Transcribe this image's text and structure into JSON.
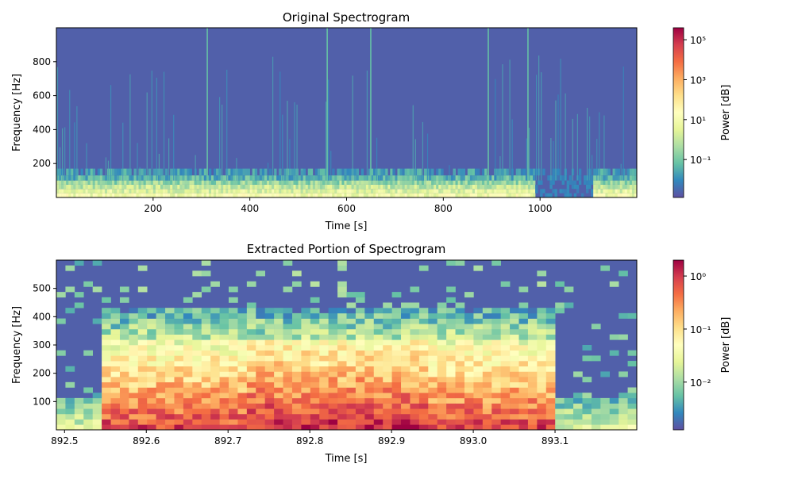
{
  "chart_data": [
    {
      "type": "heatmap",
      "title": "Original Spectrogram",
      "xlabel": "Time [s]",
      "ylabel": "Frequency [Hz]",
      "xlim": [
        0,
        1200
      ],
      "ylim": [
        0,
        1000
      ],
      "x_ticks": [
        200,
        400,
        600,
        800,
        1000
      ],
      "y_ticks": [
        200,
        400,
        600,
        800
      ],
      "colorbar": {
        "label": "Power [dB]",
        "scale": "log",
        "ticks": [
          {
            "exp": "-1",
            "label": "10⁻¹"
          },
          {
            "exp": "1",
            "label": "10¹"
          },
          {
            "exp": "3",
            "label": "10³"
          },
          {
            "exp": "5",
            "label": "10⁵"
          }
        ],
        "log_range": [
          -2.9,
          5.6
        ]
      },
      "features": {
        "low_band_freq_max": 100,
        "quiet_interval": [
          990,
          1110
        ],
        "strong_lines_time": [
          312,
          560,
          650,
          893,
          975
        ]
      }
    },
    {
      "type": "heatmap",
      "title": "Extracted Portion of Spectrogram",
      "xlabel": "Time [s]",
      "ylabel": "Frequency [Hz]",
      "xlim": [
        892.49,
        893.2
      ],
      "ylim": [
        0,
        600
      ],
      "x_ticks": [
        "892.5",
        "892.6",
        "892.7",
        "892.8",
        "892.9",
        "893.0",
        "893.1"
      ],
      "y_ticks": [
        100,
        200,
        300,
        400,
        500
      ],
      "colorbar": {
        "label": "Power [dB]",
        "scale": "log",
        "ticks": [
          {
            "exp": "-2",
            "label": "10⁻²"
          },
          {
            "exp": "-1",
            "label": "10⁻¹"
          },
          {
            "exp": "0",
            "label": "10⁰"
          }
        ],
        "log_range": [
          -2.9,
          0.3
        ]
      },
      "features": {
        "event_interval": [
          892.55,
          893.1
        ],
        "event_freq_max": 320,
        "peak_interval": [
          892.72,
          892.95
        ]
      }
    }
  ]
}
